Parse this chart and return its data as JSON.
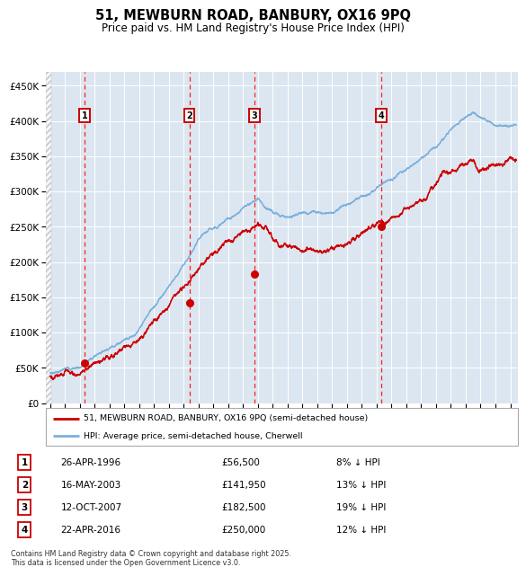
{
  "title": "51, MEWBURN ROAD, BANBURY, OX16 9PQ",
  "subtitle": "Price paid vs. HM Land Registry's House Price Index (HPI)",
  "ylim": [
    0,
    470000
  ],
  "yticks": [
    0,
    50000,
    100000,
    150000,
    200000,
    250000,
    300000,
    350000,
    400000,
    450000
  ],
  "ytick_labels": [
    "£0",
    "£50K",
    "£100K",
    "£150K",
    "£200K",
    "£250K",
    "£300K",
    "£350K",
    "£400K",
    "£450K"
  ],
  "xlim_start": 1993.7,
  "xlim_end": 2025.5,
  "hpi_color": "#7ab0dc",
  "price_color": "#cc0000",
  "background_color": "#dce6f1",
  "grid_color": "#ffffff",
  "transactions": [
    {
      "date": "26-APR-1996",
      "year": 1996.32,
      "price": 56500,
      "label": "1",
      "pct": "8% ↓ HPI"
    },
    {
      "date": "16-MAY-2003",
      "year": 2003.38,
      "price": 141950,
      "label": "2",
      "pct": "13% ↓ HPI"
    },
    {
      "date": "12-OCT-2007",
      "year": 2007.78,
      "price": 182500,
      "label": "3",
      "pct": "19% ↓ HPI"
    },
    {
      "date": "22-APR-2016",
      "year": 2016.31,
      "price": 250000,
      "label": "4",
      "pct": "12% ↓ HPI"
    }
  ],
  "legend_entries": [
    "51, MEWBURN ROAD, BANBURY, OX16 9PQ (semi-detached house)",
    "HPI: Average price, semi-detached house, Cherwell"
  ],
  "footnote": "Contains HM Land Registry data © Crown copyright and database right 2025.\nThis data is licensed under the Open Government Licence v3.0."
}
